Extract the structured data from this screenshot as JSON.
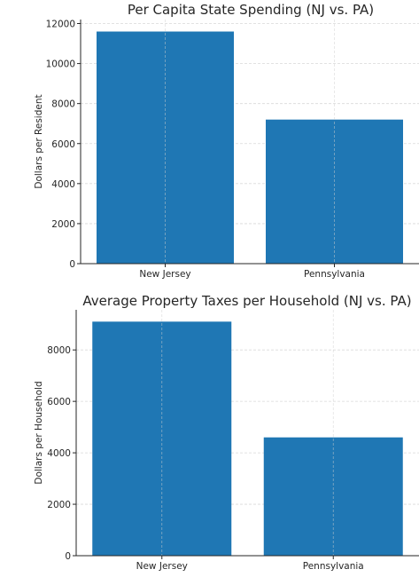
{
  "chart_data": [
    {
      "type": "bar",
      "title": "Per Capita State Spending (NJ vs. PA)",
      "xlabel": "",
      "ylabel": "Dollars per Resident",
      "categories": [
        "New Jersey",
        "Pennsylvania"
      ],
      "values": [
        11600,
        7200
      ],
      "ylim": [
        0,
        12200
      ],
      "yticks": [
        0,
        2000,
        4000,
        6000,
        8000,
        10000,
        12000
      ],
      "grid": true,
      "bar_color": "#1f77b4"
    },
    {
      "type": "bar",
      "title": "Average Property Taxes per Household (NJ vs. PA)",
      "xlabel": "",
      "ylabel": "Dollars per Household",
      "categories": [
        "New Jersey",
        "Pennsylvania"
      ],
      "values": [
        9100,
        4600
      ],
      "ylim": [
        0,
        9560
      ],
      "yticks": [
        0,
        2000,
        4000,
        6000,
        8000
      ],
      "grid": true,
      "bar_color": "#1f77b4"
    }
  ]
}
